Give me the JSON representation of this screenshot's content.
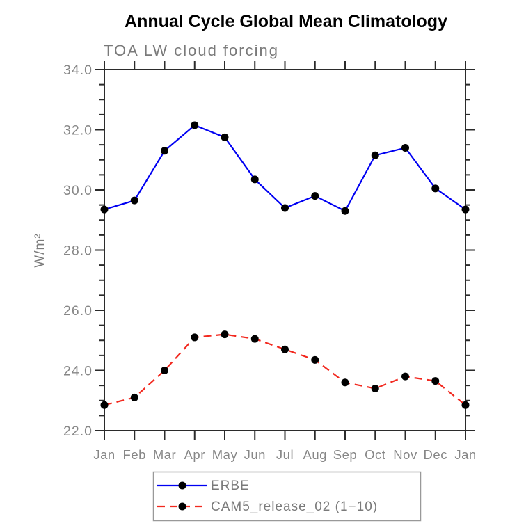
{
  "window": {
    "background": "#ffffff"
  },
  "chart_data": {
    "type": "line",
    "title": "Annual Cycle Global Mean Climatology",
    "subtitle": "TOA LW cloud forcing",
    "ylabel": "W/m²",
    "xlabel": "",
    "categories": [
      "Jan",
      "Feb",
      "Mar",
      "Apr",
      "May",
      "Jun",
      "Jul",
      "Aug",
      "Sep",
      "Oct",
      "Nov",
      "Dec",
      "Jan"
    ],
    "ylim": [
      22.0,
      34.0
    ],
    "ytick_step": 2.0,
    "yminor_step": 0.5,
    "ytick_labels": [
      "22.0",
      "24.0",
      "26.0",
      "28.0",
      "30.0",
      "32.0",
      "34.0"
    ],
    "grid": false,
    "legend_position": "bottom-center",
    "axis_color": "#2b2b2b",
    "label_color": "#878787",
    "series": [
      {
        "name": "ERBE",
        "line_color": "#0000f2",
        "line_style": "solid",
        "marker": "filled-circle",
        "marker_color": "#000000",
        "values": [
          29.35,
          29.65,
          31.3,
          32.15,
          31.75,
          30.35,
          29.4,
          29.8,
          29.3,
          31.15,
          31.4,
          30.05,
          29.35
        ]
      },
      {
        "name": "CAM5_release_02 (1−10)",
        "line_color": "#f2291f",
        "line_style": "dashed",
        "marker": "filled-circle",
        "marker_color": "#000000",
        "values": [
          22.85,
          23.1,
          24.0,
          25.1,
          25.2,
          25.05,
          24.7,
          24.35,
          23.6,
          23.4,
          23.8,
          23.65,
          22.85
        ]
      }
    ]
  }
}
